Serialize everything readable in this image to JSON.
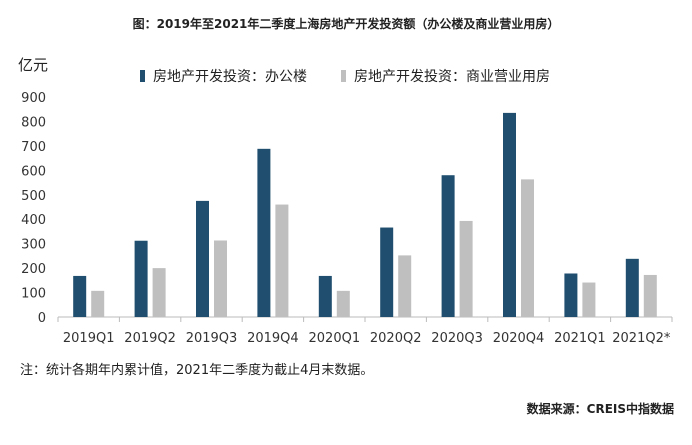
{
  "title": "图：2019年至2021年二季度上海房地产开发投资额（办公楼及商业营业用房）",
  "unit_label": "亿元",
  "note": "注：统计各期年内累计值，2021年二季度为截止4月末数据。",
  "source": "数据来源：CREIS中指数据",
  "colors": {
    "office": "#1f4e6e",
    "commercial": "#bfbfbf",
    "axis": "#bbbbbb"
  },
  "chart_data": {
    "type": "bar",
    "categories": [
      "2019Q1",
      "2019Q2",
      "2019Q3",
      "2019Q4",
      "2020Q1",
      "2020Q2",
      "2020Q3",
      "2020Q4",
      "2021Q1",
      "2021Q2*"
    ],
    "series": [
      {
        "name": "房地产开发投资：办公楼",
        "values": [
          168,
          312,
          475,
          688,
          168,
          366,
          580,
          835,
          178,
          238
        ]
      },
      {
        "name": "房地产开发投资：商业营业用房",
        "values": [
          107,
          200,
          313,
          460,
          107,
          252,
          393,
          563,
          141,
          172
        ]
      }
    ],
    "ylabel": "亿元",
    "ylim": [
      0,
      900
    ],
    "yticks": [
      0,
      100,
      200,
      300,
      400,
      500,
      600,
      700,
      800,
      900
    ],
    "grid": false,
    "legend": "top"
  }
}
